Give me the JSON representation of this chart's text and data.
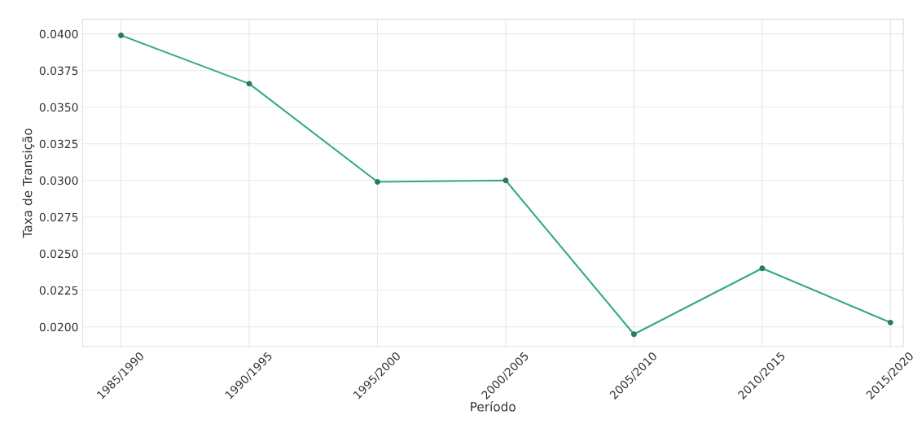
{
  "chart_data": {
    "type": "line",
    "xlabel": "Período",
    "ylabel": "Taxa de Transição",
    "categories": [
      "1985/1990",
      "1990/1995",
      "1995/2000",
      "2000/2005",
      "2005/2010",
      "2010/2015",
      "2015/2020"
    ],
    "series": [
      {
        "color": "#35a88a",
        "values": [
          0.0399,
          0.0366,
          0.0299,
          0.03,
          0.0195,
          0.024,
          0.0203
        ]
      }
    ],
    "ylim": [
      0.01865,
      0.041
    ],
    "yticks": [
      {
        "value": 0.02,
        "label": "0.0200"
      },
      {
        "value": 0.0225,
        "label": "0.0225"
      },
      {
        "value": 0.025,
        "label": "0.0250"
      },
      {
        "value": 0.0275,
        "label": "0.0275"
      },
      {
        "value": 0.03,
        "label": "0.0300"
      },
      {
        "value": 0.0325,
        "label": "0.0325"
      },
      {
        "value": 0.035,
        "label": "0.0350"
      },
      {
        "value": 0.0375,
        "label": "0.0375"
      },
      {
        "value": 0.04,
        "label": "0.0400"
      }
    ],
    "grid": true,
    "marker": "circle",
    "line_style": "solid"
  }
}
